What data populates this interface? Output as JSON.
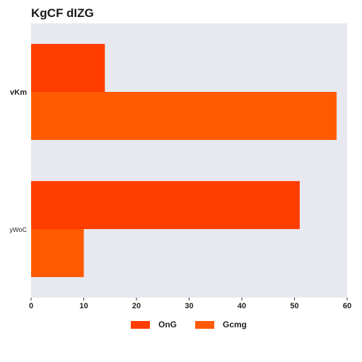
{
  "chart_data": {
    "type": "bar",
    "orientation": "horizontal",
    "title": "KgCF dIZG",
    "categories": [
      "vKm",
      "yWoC"
    ],
    "series": [
      {
        "name": "OnG",
        "values": [
          14,
          51
        ],
        "color": "#ff3d00"
      },
      {
        "name": "Gcmg",
        "values": [
          58,
          10
        ],
        "color": "#ff5a00"
      }
    ],
    "xlim": [
      0,
      60
    ],
    "xticks": [
      0,
      10,
      20,
      30,
      40,
      50,
      60
    ],
    "xlabel": "",
    "ylabel": "",
    "grid": false,
    "background": "#e8e8f0",
    "legend_position": "bottom"
  }
}
